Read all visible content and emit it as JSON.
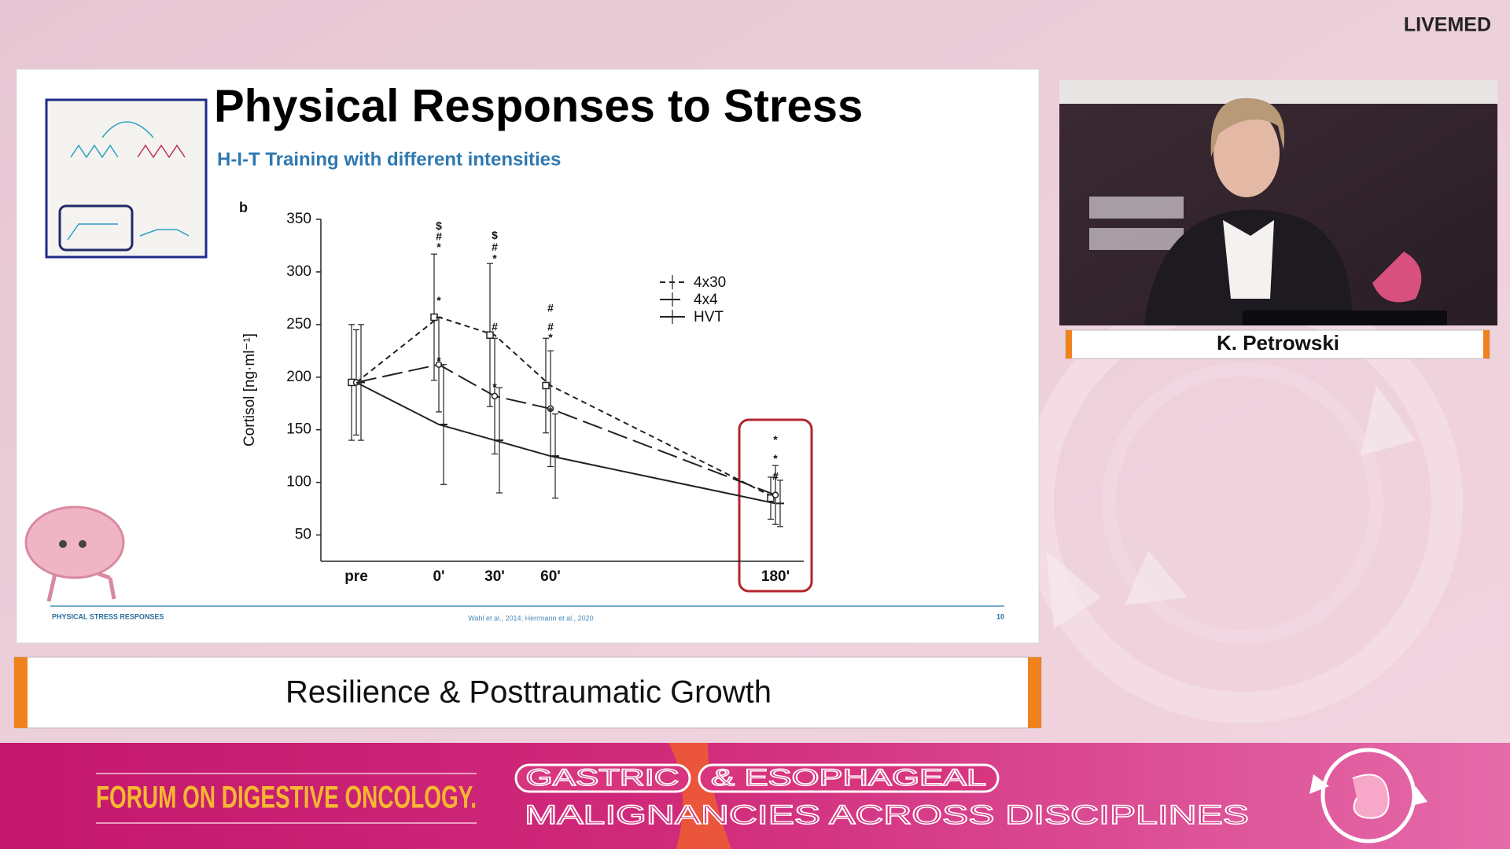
{
  "header": {
    "logo": "LIVEMED"
  },
  "slide": {
    "title": "Physical Responses to Stress",
    "subtitle": "H-I-T Training with different intensities",
    "panel_label": "b",
    "footer_left": "PHYSICAL STRESS RESPONSES",
    "footer_center": "Wahl et al., 2014; Herrmann et al., 2020",
    "page_number": "10"
  },
  "chart_data": {
    "type": "line",
    "y_label": "Cortisol [ng·ml⁻¹]",
    "categories": [
      "pre",
      "0'",
      "30'",
      "60'",
      "180'"
    ],
    "ylim": [
      25,
      350
    ],
    "yticks": [
      50,
      100,
      150,
      200,
      250,
      300,
      350
    ],
    "series": [
      {
        "name": "4x30",
        "color": "#222222",
        "dash": "short",
        "marker": "square",
        "values": [
          195,
          257,
          240,
          192,
          85
        ],
        "errors": [
          55,
          60,
          68,
          45,
          20
        ]
      },
      {
        "name": "4x4",
        "color": "#222222",
        "dash": "long",
        "marker": "dot",
        "values": [
          195,
          212,
          182,
          170,
          88
        ],
        "errors": [
          50,
          45,
          55,
          55,
          28
        ]
      },
      {
        "name": "HVT",
        "color": "#222222",
        "dash": "solid",
        "marker": "tick",
        "values": [
          195,
          155,
          140,
          125,
          80
        ],
        "errors": [
          55,
          57,
          50,
          40,
          22
        ]
      }
    ],
    "annotations": [
      {
        "x": "0'",
        "y": 343,
        "text": "$"
      },
      {
        "x": "0'",
        "y": 333,
        "text": "#"
      },
      {
        "x": "0'",
        "y": 323,
        "text": "*"
      },
      {
        "x": "0'",
        "y": 272,
        "text": "*"
      },
      {
        "x": "0'",
        "y": 215,
        "text": "*"
      },
      {
        "x": "30'",
        "y": 334,
        "text": "$"
      },
      {
        "x": "30'",
        "y": 323,
        "text": "#"
      },
      {
        "x": "30'",
        "y": 312,
        "text": "*"
      },
      {
        "x": "30'",
        "y": 247,
        "text": "#"
      },
      {
        "x": "30'",
        "y": 190,
        "text": "*"
      },
      {
        "x": "60'",
        "y": 265,
        "text": "#"
      },
      {
        "x": "60'",
        "y": 247,
        "text": "#"
      },
      {
        "x": "60'",
        "y": 237,
        "text": "*"
      },
      {
        "x": "60'",
        "y": 167,
        "text": "*"
      },
      {
        "x": "180'",
        "y": 140,
        "text": "*"
      },
      {
        "x": "180'",
        "y": 122,
        "text": "*"
      },
      {
        "x": "180'",
        "y": 105,
        "text": "#"
      }
    ]
  },
  "speaker": {
    "name": "K. Petrowski"
  },
  "lower_third": {
    "text": "Resilience & Posttraumatic Growth"
  },
  "banner": {
    "forum": "FORUM ON DIGESTIVE ONCOLOGY.",
    "tag1": "GASTRIC",
    "tag2": "& ESOPHAGEAL",
    "tagline": "MALIGNANCIES ACROSS DISCIPLINES"
  }
}
